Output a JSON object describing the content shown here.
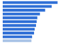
{
  "chart_data": {
    "type": "bar",
    "orientation": "horizontal",
    "categories": [
      null,
      null,
      null,
      null,
      null,
      null,
      null,
      null,
      null,
      null,
      null
    ],
    "values": [
      84,
      75,
      65,
      57,
      53,
      52,
      51,
      49,
      48,
      45,
      44
    ],
    "colors": [
      "#2f6fd6",
      "#2f6fd6",
      "#2f6fd6",
      "#2f6fd6",
      "#2f6fd6",
      "#2f6fd6",
      "#2f6fd6",
      "#2f6fd6",
      "#2f6fd6",
      "#2f6fd6",
      "#a9c3e6"
    ],
    "xlim": [
      0,
      100
    ],
    "grid": false,
    "tick_labels": false
  }
}
